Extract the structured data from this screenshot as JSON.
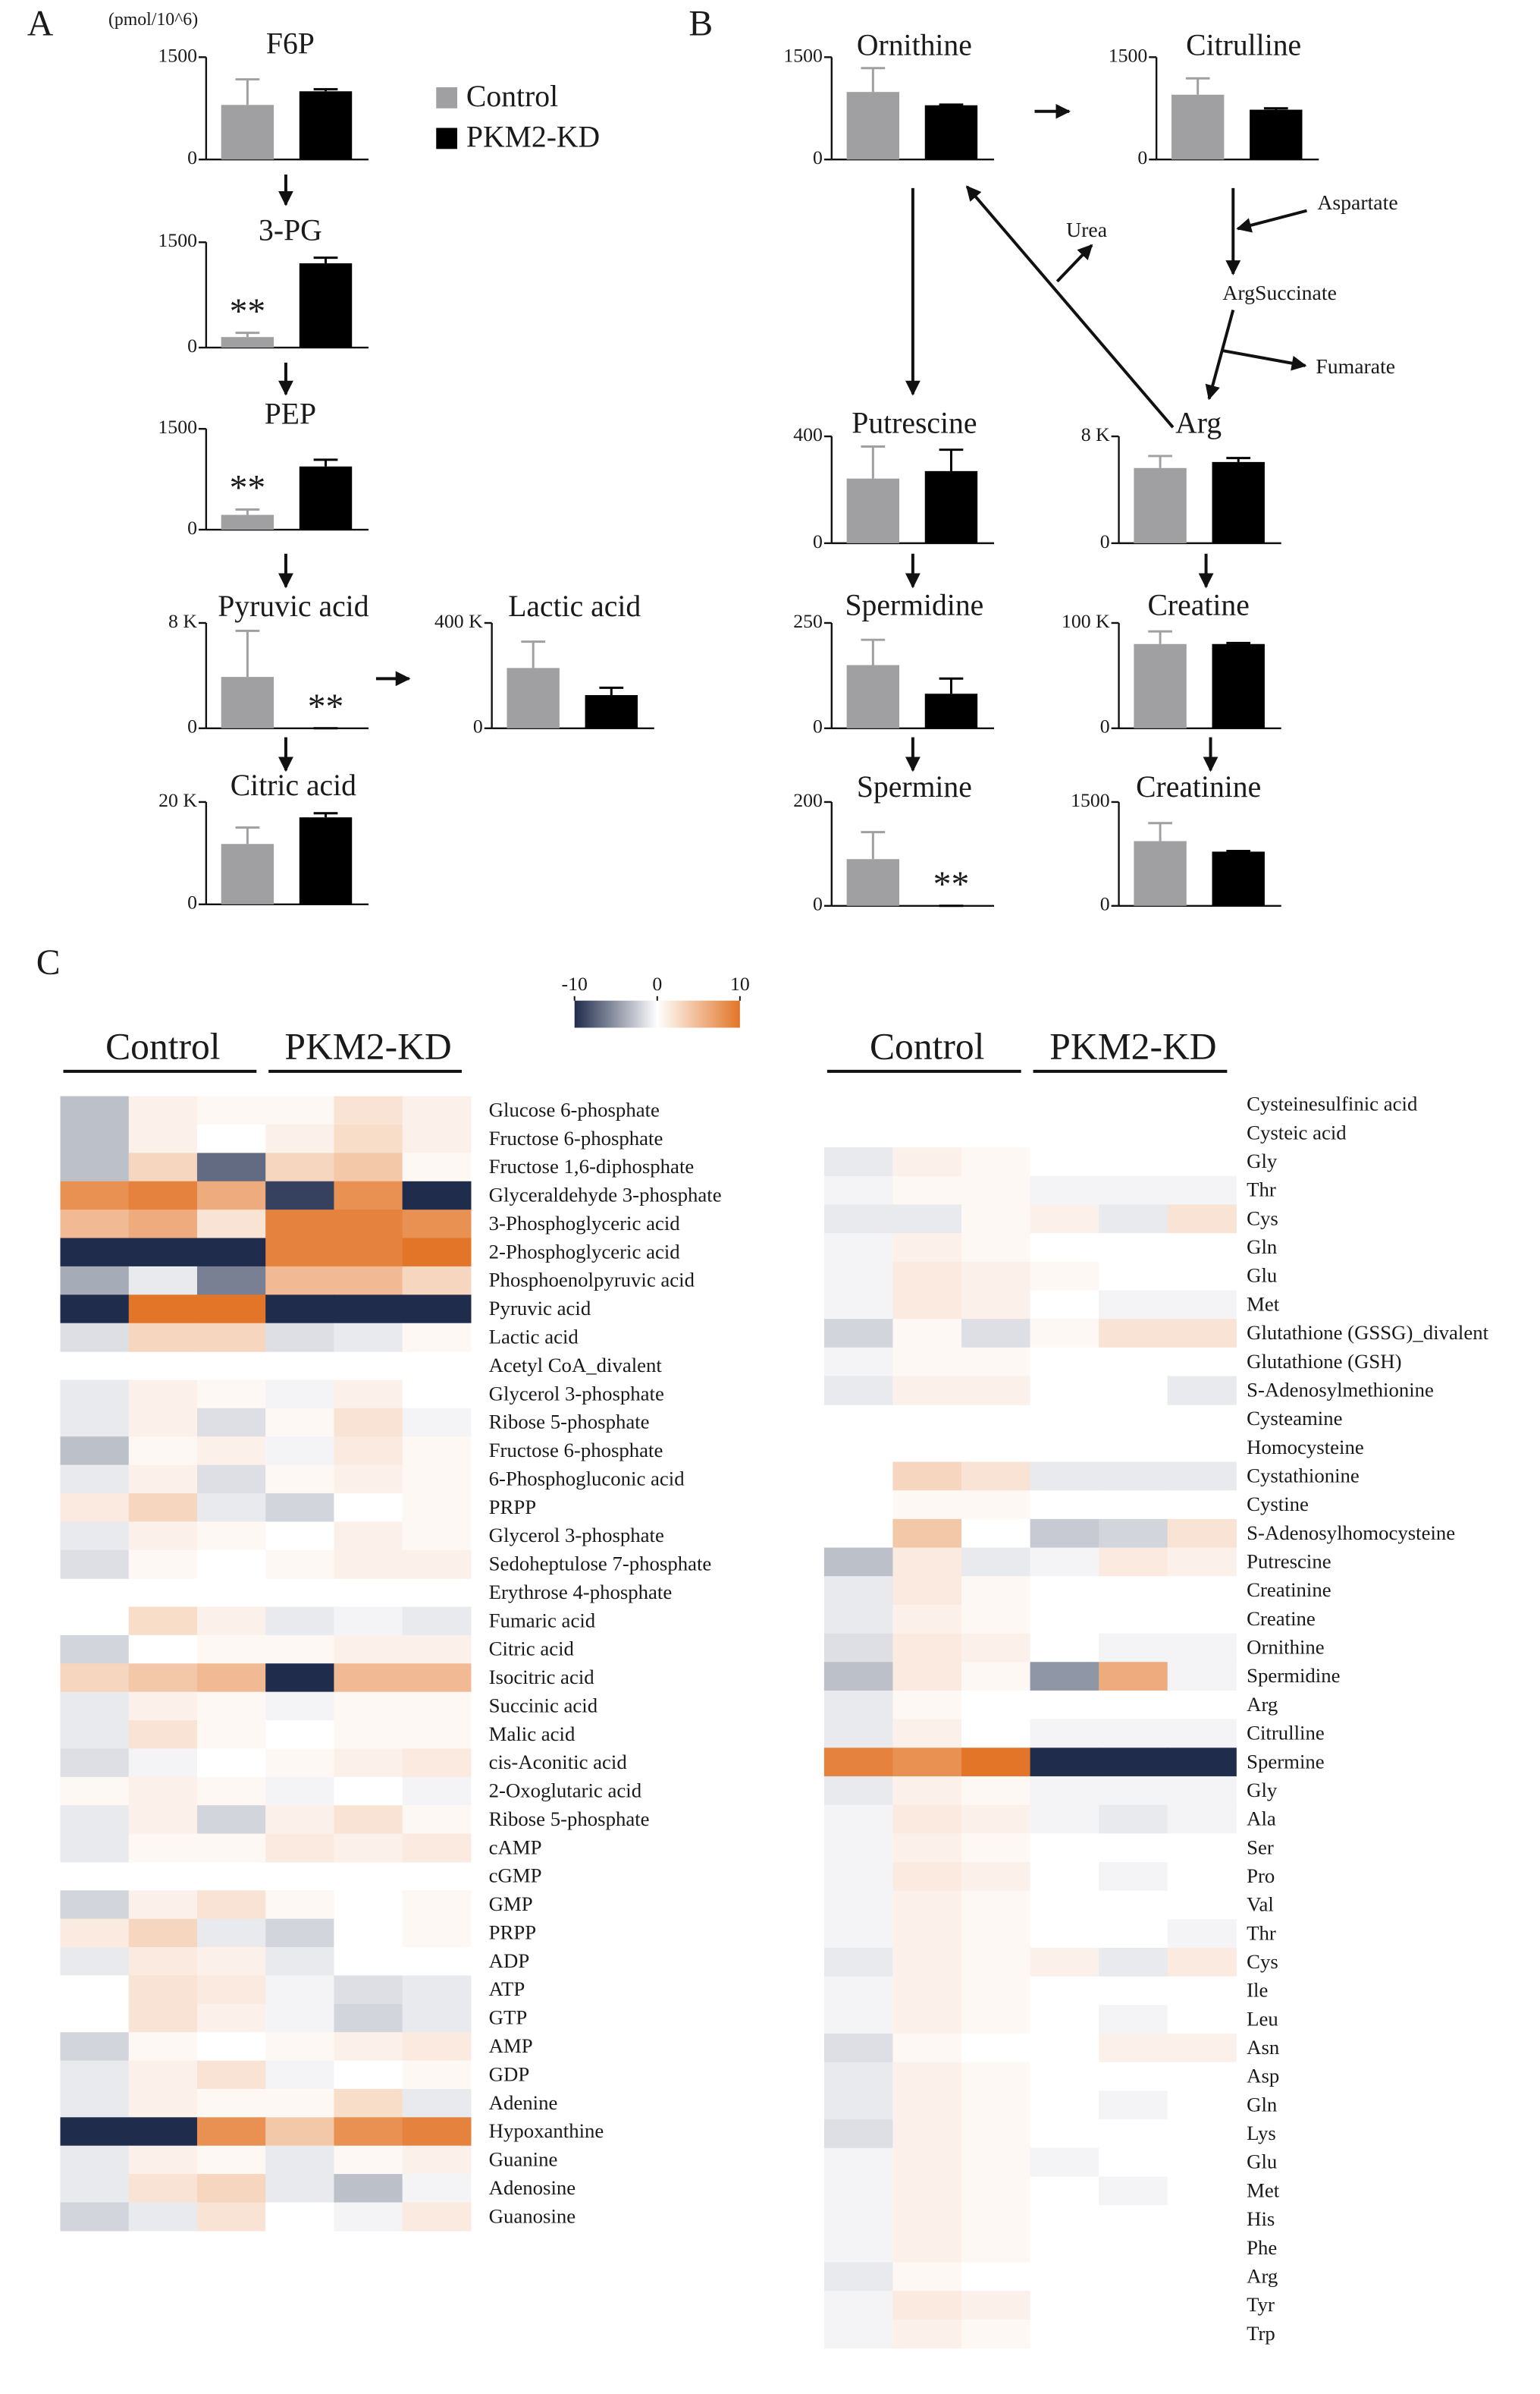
{
  "panel_labels": [
    "A",
    "B",
    "C"
  ],
  "y_unit": "(pmol/10^6)",
  "legend": [
    {
      "name": "Control",
      "color": "#a0a0a3"
    },
    {
      "name": "PKM2-KD",
      "color": "#000000"
    }
  ],
  "pathway_labels": [
    "Urea",
    "Aspartate",
    "ArgSuccinate",
    "Fumarate"
  ],
  "chart_data": [
    {
      "type": "bar",
      "title": "F6P",
      "ylim": [
        0,
        1500
      ],
      "yticks": [
        0,
        1500
      ],
      "values": [
        800,
        1000
      ],
      "errors": [
        375,
        30
      ],
      "significance": [
        null,
        null
      ]
    },
    {
      "type": "bar",
      "title": "3-PG",
      "ylim": [
        0,
        1500
      ],
      "yticks": [
        0,
        1500
      ],
      "values": [
        150,
        1200
      ],
      "errors": [
        60,
        80
      ],
      "significance": [
        "**",
        null
      ]
    },
    {
      "type": "bar",
      "title": "PEP",
      "ylim": [
        0,
        1500
      ],
      "yticks": [
        0,
        1500
      ],
      "values": [
        220,
        940
      ],
      "errors": [
        80,
        100
      ],
      "significance": [
        "**",
        null
      ]
    },
    {
      "type": "bar",
      "title": "Pyruvic acid",
      "ylim": [
        0,
        8000
      ],
      "yticks": [
        0,
        {
          "value": 8000,
          "label": "8 K"
        }
      ],
      "values": [
        3900,
        0
      ],
      "errors": [
        3500,
        0
      ],
      "significance": [
        null,
        "**"
      ]
    },
    {
      "type": "bar",
      "title": "Lactic acid",
      "ylim": [
        0,
        400000
      ],
      "yticks": [
        0,
        {
          "value": 400000,
          "label": "400 K"
        }
      ],
      "values": [
        229000,
        126000
      ],
      "errors": [
        100000,
        28000
      ],
      "significance": [
        null,
        null
      ]
    },
    {
      "type": "bar",
      "title": "Citric acid",
      "ylim": [
        0,
        20000
      ],
      "yticks": [
        0,
        {
          "value": 20000,
          "label": "20 K"
        }
      ],
      "values": [
        11800,
        17000
      ],
      "errors": [
        3200,
        800
      ],
      "significance": [
        null,
        null
      ]
    },
    {
      "type": "bar",
      "title": "Ornithine",
      "ylim": [
        0,
        1500
      ],
      "yticks": [
        0,
        1500
      ],
      "values": [
        990,
        795
      ],
      "errors": [
        350,
        10
      ],
      "significance": [
        null,
        null
      ]
    },
    {
      "type": "bar",
      "title": "Citrulline",
      "ylim": [
        0,
        1500
      ],
      "yticks": [
        0,
        1500
      ],
      "values": [
        950,
        730
      ],
      "errors": [
        240,
        20
      ],
      "significance": [
        null,
        null
      ]
    },
    {
      "type": "bar",
      "title": "Putrescine",
      "ylim": [
        0,
        400
      ],
      "yticks": [
        0,
        400
      ],
      "values": [
        242,
        270
      ],
      "errors": [
        120,
        80
      ],
      "significance": [
        null,
        null
      ]
    },
    {
      "type": "bar",
      "title": "Arg",
      "ylim": [
        0,
        8000
      ],
      "yticks": [
        0,
        {
          "value": 8000,
          "label": "8 K"
        }
      ],
      "values": [
        5630,
        6080
      ],
      "errors": [
        900,
        300
      ],
      "significance": [
        null,
        null
      ]
    },
    {
      "type": "bar",
      "title": "Spermidine",
      "ylim": [
        0,
        250
      ],
      "yticks": [
        0,
        250
      ],
      "values": [
        150,
        82
      ],
      "errors": [
        60,
        36
      ],
      "significance": [
        null,
        null
      ]
    },
    {
      "type": "bar",
      "title": "Creatine",
      "ylim": [
        0,
        100000
      ],
      "yticks": [
        0,
        {
          "value": 100000,
          "label": "100 K"
        }
      ],
      "values": [
        80000,
        80000
      ],
      "errors": [
        12000,
        1000
      ],
      "significance": [
        null,
        null
      ]
    },
    {
      "type": "bar",
      "title": "Spermine",
      "ylim": [
        0,
        200
      ],
      "yticks": [
        0,
        200
      ],
      "values": [
        90,
        0
      ],
      "errors": [
        52,
        0
      ],
      "significance": [
        null,
        "**"
      ]
    },
    {
      "type": "bar",
      "title": "Creatinine",
      "ylim": [
        0,
        1500
      ],
      "yticks": [
        0,
        1500
      ],
      "values": [
        935,
        783
      ],
      "errors": [
        260,
        10
      ],
      "significance": [
        null,
        null
      ]
    },
    {
      "type": "heatmap",
      "column_groups": [
        "Control",
        "PKM2-KD"
      ],
      "zlim": [
        -10,
        10
      ],
      "zticks": [
        -10,
        0,
        10
      ],
      "colormap": [
        "#1f2c4c",
        "#ffffff",
        "#e27528"
      ],
      "rows": [
        "Glucose 6-phosphate",
        "Fructose 6-phosphate",
        "Fructose 1,6-diphosphate",
        "Glyceraldehyde 3-phosphate",
        "3-Phosphoglyceric acid",
        "2-Phosphoglyceric acid",
        "Phosphoenolpyruvic acid",
        "Pyruvic acid",
        "Lactic acid",
        "Acetyl CoA_divalent",
        "Glycerol 3-phosphate",
        "Ribose 5-phosphate",
        "Fructose 6-phosphate",
        "6-Phosphogluconic acid",
        "PRPP",
        "Glycerol 3-phosphate",
        "Sedoheptulose 7-phosphate",
        "Erythrose 4-phosphate",
        "Fumaric acid",
        "Citric acid",
        "Isocitric acid",
        "Succinic acid",
        "Malic acid",
        "cis-Aconitic acid",
        "2-Oxoglutaric acid",
        "Ribose 5-phosphate",
        "cAMP",
        "cGMP",
        "GMP",
        "PRPP",
        "ADP",
        "ATP",
        "GTP",
        "AMP",
        "GDP",
        "Adenine",
        "Hypoxanthine",
        "Guanine",
        "Adenosine",
        "Guanosine"
      ],
      "values": [
        [
          -3,
          1,
          0.5,
          0.5,
          2,
          1
        ],
        [
          -3,
          1,
          0,
          1,
          2.5,
          1
        ],
        [
          -3,
          3,
          -7,
          3,
          4,
          0.5
        ],
        [
          8,
          9,
          6,
          -9,
          8,
          -10
        ],
        [
          5,
          6,
          2,
          9,
          9,
          8
        ],
        [
          -10,
          -10,
          -10,
          9,
          9,
          10
        ],
        [
          -4,
          -1,
          -6,
          5,
          5,
          3
        ],
        [
          -10,
          10,
          10,
          -10,
          -10,
          -10
        ],
        [
          -1.5,
          3,
          3,
          -1.5,
          -1,
          0.5
        ],
        null,
        [
          -1,
          1,
          0.5,
          -0.5,
          1,
          0
        ],
        [
          -1,
          1,
          -1.5,
          0.5,
          2,
          -0.5
        ],
        [
          -3,
          0.5,
          1,
          -0.5,
          1.5,
          0.5
        ],
        [
          -1,
          1,
          -1.5,
          0.5,
          1,
          0.5
        ],
        [
          1.5,
          3,
          -1,
          -2,
          0,
          0.5
        ],
        [
          -1,
          1,
          0.5,
          0,
          1,
          0.5
        ],
        [
          -1.5,
          0.5,
          0,
          0.5,
          1,
          1
        ],
        null,
        [
          0,
          2.5,
          1,
          -1,
          -0.5,
          -1
        ],
        [
          -2,
          0,
          0.5,
          0.5,
          1,
          1
        ],
        [
          3,
          4,
          5,
          -10,
          5,
          5
        ],
        [
          -1,
          1,
          0.5,
          -0.5,
          0.5,
          0.5
        ],
        [
          -1,
          2,
          0.5,
          0,
          0.5,
          0.5
        ],
        [
          -1.5,
          -0.5,
          0,
          0.5,
          1,
          1.5
        ],
        [
          0.5,
          1,
          0.5,
          -0.5,
          0,
          -0.5
        ],
        [
          -1,
          1,
          -2,
          1,
          2,
          0.5
        ],
        [
          -1,
          0.5,
          0.5,
          1.5,
          1,
          1.5
        ],
        null,
        [
          -2,
          1,
          2,
          0.5,
          0,
          0.5
        ],
        [
          1.5,
          3,
          -1,
          -2,
          0,
          0.5
        ],
        [
          -1,
          1.5,
          1,
          -1,
          0,
          0
        ],
        [
          0,
          2,
          1.5,
          -0.5,
          -1.5,
          -1
        ],
        [
          0,
          2,
          1,
          -0.5,
          -2,
          -1
        ],
        [
          -2,
          0.5,
          0,
          0.5,
          1,
          1.5
        ],
        [
          -1,
          1,
          2,
          -0.5,
          0,
          0.5
        ],
        [
          -1,
          1,
          0.5,
          0.5,
          2.5,
          -1
        ],
        [
          -10,
          -10,
          8,
          4,
          8,
          9
        ],
        [
          -1,
          1,
          0.5,
          -1,
          0.5,
          1
        ],
        [
          -1,
          2,
          3,
          -1,
          -3,
          -0.5
        ],
        [
          -2,
          -1,
          2,
          0,
          -0.5,
          1.5
        ]
      ]
    },
    {
      "type": "heatmap",
      "column_groups": [
        "Control",
        "PKM2-KD"
      ],
      "zlim": [
        -10,
        10
      ],
      "colormap": [
        "#1f2c4c",
        "#ffffff",
        "#e27528"
      ],
      "rows": [
        "Cysteinesulfinic acid",
        "Cysteic acid",
        "Gly",
        "Thr",
        "Cys",
        "Gln",
        "Glu",
        "Met",
        "Glutathione (GSSG)_divalent",
        "Glutathione (GSH)",
        "S-Adenosylmethionine",
        "Cysteamine",
        "Homocysteine",
        "Cystathionine",
        "Cystine",
        "S-Adenosylhomocysteine",
        "Putrescine",
        "Creatinine",
        "Creatine",
        "Ornithine",
        "Spermidine",
        "Arg",
        "Citrulline",
        "Spermine",
        "Gly",
        "Ala",
        "Ser",
        "Pro",
        "Val",
        "Thr",
        "Cys",
        "Ile",
        "Leu",
        "Asn",
        "Asp",
        "Gln",
        "Lys",
        "Glu",
        "Met",
        "His",
        "Phe",
        "Arg",
        "Tyr",
        "Trp"
      ],
      "values": [
        null,
        null,
        [
          -1,
          1,
          0.5,
          0,
          0,
          0
        ],
        [
          -0.5,
          0.5,
          0.5,
          -0.5,
          -0.5,
          -0.5
        ],
        [
          -1,
          -1,
          0.5,
          1,
          -1,
          2
        ],
        [
          -0.5,
          1,
          0.5,
          0,
          0,
          0
        ],
        [
          -0.5,
          1.5,
          1,
          0.5,
          0,
          0
        ],
        [
          -0.5,
          1.5,
          1,
          0,
          -0.5,
          -0.5
        ],
        [
          -2,
          0.5,
          -1.5,
          0.5,
          2,
          2
        ],
        [
          -0.5,
          0.5,
          0.5,
          0,
          0,
          0
        ],
        [
          -1,
          1,
          1,
          0,
          0,
          -1
        ],
        null,
        null,
        [
          0,
          3,
          2,
          -1,
          -1,
          -1
        ],
        [
          0,
          0.5,
          0.5,
          0,
          0,
          0
        ],
        [
          0,
          4,
          0,
          -2.5,
          -2,
          2
        ],
        [
          -3,
          1.5,
          -1,
          -0.5,
          1.5,
          1
        ],
        [
          -1,
          1.5,
          0.5,
          0,
          0,
          0
        ],
        [
          -1,
          1,
          0.5,
          0,
          0,
          0
        ],
        [
          -1.5,
          1.5,
          1,
          0,
          -0.5,
          -0.5
        ],
        [
          -3,
          1.5,
          0.5,
          -5,
          6,
          -0.5
        ],
        [
          -1,
          0.5,
          0,
          0,
          0,
          0
        ],
        [
          -1,
          1,
          0,
          -0.5,
          -0.5,
          -0.5
        ],
        [
          9,
          8,
          10,
          -10,
          -10,
          -10
        ],
        [
          -1,
          1,
          0.5,
          -0.5,
          -0.5,
          -0.5
        ],
        [
          -0.5,
          1.5,
          1,
          -0.5,
          -1,
          -0.5
        ],
        [
          -0.5,
          1,
          0.5,
          0,
          0,
          0
        ],
        [
          -0.5,
          1.5,
          1,
          0,
          -0.5,
          0
        ],
        [
          -0.5,
          1,
          0.5,
          0,
          0,
          0
        ],
        [
          -0.5,
          1,
          0.5,
          0,
          0,
          -0.5
        ],
        [
          -1,
          1,
          0.5,
          1,
          -1,
          1.5
        ],
        [
          -0.5,
          1,
          0.5,
          0,
          0,
          0
        ],
        [
          -0.5,
          1,
          0.5,
          0,
          -0.5,
          0
        ],
        [
          -1.5,
          0.5,
          0,
          0,
          1,
          1
        ],
        [
          -1,
          1,
          0.5,
          0,
          0,
          0
        ],
        [
          -1,
          1,
          0.5,
          0,
          -0.5,
          0
        ],
        [
          -1.5,
          1,
          0.5,
          0,
          0,
          0
        ],
        [
          -0.5,
          1,
          0.5,
          -0.5,
          0,
          0
        ],
        [
          -0.5,
          1,
          0.5,
          0,
          -0.5,
          0
        ],
        [
          -0.5,
          1,
          0.5,
          0,
          0,
          0
        ],
        [
          -0.5,
          1,
          0.5,
          0,
          0,
          0
        ],
        [
          -1,
          0.5,
          0,
          0,
          0,
          0
        ],
        [
          -0.5,
          1.5,
          1,
          0,
          0,
          0
        ],
        [
          -0.5,
          1,
          0.5,
          0,
          0,
          0
        ]
      ]
    }
  ]
}
